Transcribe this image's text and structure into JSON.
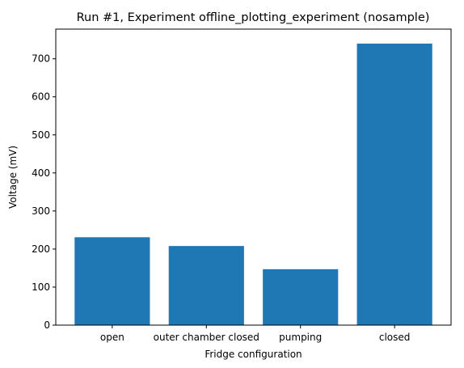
{
  "chart_data": {
    "type": "bar",
    "title": "Run #1, Experiment offline_plotting_experiment (nosample)",
    "xlabel": "Fridge configuration",
    "ylabel": "Voltage (mV)",
    "categories": [
      "open",
      "outer chamber closed",
      "pumping",
      "closed"
    ],
    "values": [
      231,
      208,
      147,
      740
    ],
    "ylim": [
      0,
      778
    ],
    "yticks": [
      0,
      100,
      200,
      300,
      400,
      500,
      600,
      700
    ],
    "bar_color": "#1f77b4",
    "grid": false,
    "legend": "none"
  }
}
